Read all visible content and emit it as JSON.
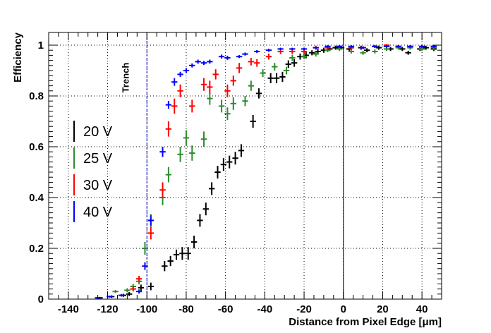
{
  "chart_data": {
    "type": "scatter",
    "xlabel": "Distance from Pixel Edge [μm]",
    "ylabel": "Efficiency",
    "xlim": [
      -150,
      50
    ],
    "ylim": [
      0,
      1.05
    ],
    "x_ticks": [
      -140,
      -120,
      -100,
      -80,
      -60,
      -40,
      -20,
      0,
      20,
      40
    ],
    "y_ticks": [
      0,
      0.2,
      0.4,
      0.6,
      0.8,
      1
    ],
    "grid": true,
    "legend_placement": "left",
    "annotations": [
      {
        "text": "Trench",
        "x": -100,
        "line": "vertical-dashed"
      }
    ],
    "x_bin_half_width": 1.5,
    "series": [
      {
        "name": "20 V",
        "color": "#000000",
        "points": [
          {
            "x": -124,
            "y": 0.005,
            "err": 0.004
          },
          {
            "x": -118,
            "y": 0.01,
            "err": 0.005
          },
          {
            "x": -112,
            "y": 0.015,
            "err": 0.006
          },
          {
            "x": -109,
            "y": 0.02,
            "err": 0.008
          },
          {
            "x": -103,
            "y": 0.045,
            "err": 0.012
          },
          {
            "x": -98,
            "y": 0.05,
            "err": 0.015
          },
          {
            "x": -91,
            "y": 0.13,
            "err": 0.02
          },
          {
            "x": -88,
            "y": 0.15,
            "err": 0.02
          },
          {
            "x": -85,
            "y": 0.175,
            "err": 0.02
          },
          {
            "x": -82,
            "y": 0.18,
            "err": 0.025
          },
          {
            "x": -79,
            "y": 0.18,
            "err": 0.025
          },
          {
            "x": -76,
            "y": 0.225,
            "err": 0.025
          },
          {
            "x": -73,
            "y": 0.31,
            "err": 0.025
          },
          {
            "x": -70,
            "y": 0.355,
            "err": 0.025
          },
          {
            "x": -67,
            "y": 0.435,
            "err": 0.025
          },
          {
            "x": -64,
            "y": 0.5,
            "err": 0.025
          },
          {
            "x": -61,
            "y": 0.53,
            "err": 0.025
          },
          {
            "x": -58,
            "y": 0.54,
            "err": 0.025
          },
          {
            "x": -55,
            "y": 0.555,
            "err": 0.025
          },
          {
            "x": -52,
            "y": 0.585,
            "err": 0.025
          },
          {
            "x": -46,
            "y": 0.7,
            "err": 0.025
          },
          {
            "x": -43,
            "y": 0.81,
            "err": 0.02
          },
          {
            "x": -37,
            "y": 0.87,
            "err": 0.02
          },
          {
            "x": -34,
            "y": 0.87,
            "err": 0.02
          },
          {
            "x": -31,
            "y": 0.875,
            "err": 0.02
          },
          {
            "x": -28,
            "y": 0.925,
            "err": 0.015
          },
          {
            "x": -25,
            "y": 0.93,
            "err": 0.015
          },
          {
            "x": -22,
            "y": 0.955,
            "err": 0.012
          },
          {
            "x": -19,
            "y": 0.96,
            "err": 0.012
          },
          {
            "x": -16,
            "y": 0.97,
            "err": 0.01
          },
          {
            "x": -13,
            "y": 0.975,
            "err": 0.01
          },
          {
            "x": -10,
            "y": 0.98,
            "err": 0.01
          },
          {
            "x": -7,
            "y": 0.985,
            "err": 0.008
          },
          {
            "x": -4,
            "y": 0.99,
            "err": 0.008
          },
          {
            "x": -1,
            "y": 0.99,
            "err": 0.008
          },
          {
            "x": 3,
            "y": 0.985,
            "err": 0.008
          },
          {
            "x": 9,
            "y": 0.99,
            "err": 0.008
          },
          {
            "x": 12,
            "y": 0.98,
            "err": 0.008
          },
          {
            "x": 18,
            "y": 0.99,
            "err": 0.008
          },
          {
            "x": 24,
            "y": 0.985,
            "err": 0.008
          },
          {
            "x": 30,
            "y": 0.985,
            "err": 0.008
          },
          {
            "x": 33,
            "y": 0.97,
            "err": 0.008
          },
          {
            "x": 39,
            "y": 0.985,
            "err": 0.008
          },
          {
            "x": 42,
            "y": 0.99,
            "err": 0.008
          },
          {
            "x": 46,
            "y": 0.985,
            "err": 0.008
          }
        ]
      },
      {
        "name": "25 V",
        "color": "#2e8b2e",
        "points": [
          {
            "x": -116,
            "y": 0.03,
            "err": 0.006
          },
          {
            "x": -110,
            "y": 0.035,
            "err": 0.008
          },
          {
            "x": -107,
            "y": 0.05,
            "err": 0.01
          },
          {
            "x": -104,
            "y": 0.07,
            "err": 0.012
          },
          {
            "x": -101,
            "y": 0.2,
            "err": 0.025
          },
          {
            "x": -98,
            "y": 0.31,
            "err": 0.025
          },
          {
            "x": -92,
            "y": 0.4,
            "err": 0.03
          },
          {
            "x": -89,
            "y": 0.49,
            "err": 0.03
          },
          {
            "x": -83,
            "y": 0.57,
            "err": 0.03
          },
          {
            "x": -80,
            "y": 0.635,
            "err": 0.03
          },
          {
            "x": -77,
            "y": 0.575,
            "err": 0.03
          },
          {
            "x": -71,
            "y": 0.63,
            "err": 0.03
          },
          {
            "x": -68,
            "y": 0.79,
            "err": 0.025
          },
          {
            "x": -62,
            "y": 0.76,
            "err": 0.025
          },
          {
            "x": -59,
            "y": 0.73,
            "err": 0.025
          },
          {
            "x": -56,
            "y": 0.77,
            "err": 0.025
          },
          {
            "x": -50,
            "y": 0.78,
            "err": 0.02
          },
          {
            "x": -47,
            "y": 0.84,
            "err": 0.02
          },
          {
            "x": -41,
            "y": 0.89,
            "err": 0.015
          },
          {
            "x": -35,
            "y": 0.915,
            "err": 0.015
          },
          {
            "x": -29,
            "y": 0.9,
            "err": 0.015
          },
          {
            "x": -26,
            "y": 0.95,
            "err": 0.012
          },
          {
            "x": -20,
            "y": 0.955,
            "err": 0.01
          },
          {
            "x": -14,
            "y": 0.965,
            "err": 0.01
          },
          {
            "x": -8,
            "y": 0.98,
            "err": 0.008
          },
          {
            "x": -2,
            "y": 0.985,
            "err": 0.008
          },
          {
            "x": 4,
            "y": 0.975,
            "err": 0.008
          },
          {
            "x": 10,
            "y": 0.97,
            "err": 0.008
          },
          {
            "x": 16,
            "y": 0.975,
            "err": 0.008
          },
          {
            "x": 22,
            "y": 0.985,
            "err": 0.008
          },
          {
            "x": 28,
            "y": 0.99,
            "err": 0.008
          },
          {
            "x": 34,
            "y": 0.99,
            "err": 0.008
          },
          {
            "x": 40,
            "y": 0.985,
            "err": 0.008
          },
          {
            "x": 46,
            "y": 0.99,
            "err": 0.008
          }
        ]
      },
      {
        "name": "30 V",
        "color": "#ff0000",
        "points": [
          {
            "x": -107,
            "y": 0.04,
            "err": 0.01
          },
          {
            "x": -104,
            "y": 0.08,
            "err": 0.012
          },
          {
            "x": -98,
            "y": 0.26,
            "err": 0.025
          },
          {
            "x": -92,
            "y": 0.43,
            "err": 0.03
          },
          {
            "x": -89,
            "y": 0.67,
            "err": 0.03
          },
          {
            "x": -86,
            "y": 0.76,
            "err": 0.03
          },
          {
            "x": -83,
            "y": 0.82,
            "err": 0.025
          },
          {
            "x": -77,
            "y": 0.76,
            "err": 0.025
          },
          {
            "x": -71,
            "y": 0.845,
            "err": 0.025
          },
          {
            "x": -68,
            "y": 0.835,
            "err": 0.025
          },
          {
            "x": -65,
            "y": 0.885,
            "err": 0.02
          },
          {
            "x": -59,
            "y": 0.82,
            "err": 0.025
          },
          {
            "x": -56,
            "y": 0.86,
            "err": 0.02
          },
          {
            "x": -53,
            "y": 0.91,
            "err": 0.02
          },
          {
            "x": -47,
            "y": 0.935,
            "err": 0.015
          },
          {
            "x": -44,
            "y": 0.93,
            "err": 0.015
          },
          {
            "x": -38,
            "y": 0.955,
            "err": 0.012
          },
          {
            "x": -32,
            "y": 0.975,
            "err": 0.01
          },
          {
            "x": -26,
            "y": 0.975,
            "err": 0.01
          },
          {
            "x": -20,
            "y": 0.975,
            "err": 0.01
          },
          {
            "x": -14,
            "y": 0.99,
            "err": 0.008
          },
          {
            "x": -8,
            "y": 0.99,
            "err": 0.008
          },
          {
            "x": -2,
            "y": 0.995,
            "err": 0.006
          },
          {
            "x": 4,
            "y": 0.99,
            "err": 0.006
          },
          {
            "x": 10,
            "y": 0.99,
            "err": 0.006
          },
          {
            "x": 16,
            "y": 0.995,
            "err": 0.006
          },
          {
            "x": 22,
            "y": 1.0,
            "err": 0.004
          },
          {
            "x": 28,
            "y": 0.995,
            "err": 0.006
          },
          {
            "x": 34,
            "y": 0.995,
            "err": 0.006
          },
          {
            "x": 40,
            "y": 0.995,
            "err": 0.006
          },
          {
            "x": 46,
            "y": 0.995,
            "err": 0.006
          }
        ]
      },
      {
        "name": "40 V",
        "color": "#0000ff",
        "points": [
          {
            "x": -125,
            "y": 0.005,
            "err": 0.003
          },
          {
            "x": -119,
            "y": 0.01,
            "err": 0.004
          },
          {
            "x": -113,
            "y": 0.015,
            "err": 0.005
          },
          {
            "x": -104,
            "y": 0.03,
            "err": 0.008
          },
          {
            "x": -101,
            "y": 0.13,
            "err": 0.015
          },
          {
            "x": -98,
            "y": 0.31,
            "err": 0.02
          },
          {
            "x": -92,
            "y": 0.58,
            "err": 0.02
          },
          {
            "x": -89,
            "y": 0.765,
            "err": 0.015
          },
          {
            "x": -86,
            "y": 0.855,
            "err": 0.015
          },
          {
            "x": -83,
            "y": 0.885,
            "err": 0.01
          },
          {
            "x": -80,
            "y": 0.9,
            "err": 0.01
          },
          {
            "x": -77,
            "y": 0.92,
            "err": 0.008
          },
          {
            "x": -74,
            "y": 0.935,
            "err": 0.008
          },
          {
            "x": -71,
            "y": 0.93,
            "err": 0.008
          },
          {
            "x": -68,
            "y": 0.935,
            "err": 0.008
          },
          {
            "x": -62,
            "y": 0.955,
            "err": 0.008
          },
          {
            "x": -59,
            "y": 0.95,
            "err": 0.008
          },
          {
            "x": -53,
            "y": 0.955,
            "err": 0.006
          },
          {
            "x": -50,
            "y": 0.965,
            "err": 0.006
          },
          {
            "x": -44,
            "y": 0.975,
            "err": 0.006
          },
          {
            "x": -38,
            "y": 0.98,
            "err": 0.006
          },
          {
            "x": -32,
            "y": 0.985,
            "err": 0.005
          },
          {
            "x": -26,
            "y": 0.985,
            "err": 0.005
          },
          {
            "x": -20,
            "y": 0.985,
            "err": 0.005
          },
          {
            "x": -14,
            "y": 0.99,
            "err": 0.005
          },
          {
            "x": -8,
            "y": 0.995,
            "err": 0.005
          },
          {
            "x": -2,
            "y": 0.995,
            "err": 0.005
          },
          {
            "x": 4,
            "y": 0.995,
            "err": 0.005
          },
          {
            "x": 10,
            "y": 0.99,
            "err": 0.005
          },
          {
            "x": 16,
            "y": 0.995,
            "err": 0.005
          },
          {
            "x": 22,
            "y": 0.995,
            "err": 0.005
          },
          {
            "x": 28,
            "y": 0.995,
            "err": 0.005
          },
          {
            "x": 34,
            "y": 0.995,
            "err": 0.005
          },
          {
            "x": 40,
            "y": 0.995,
            "err": 0.005
          },
          {
            "x": 46,
            "y": 0.995,
            "err": 0.005
          }
        ]
      }
    ]
  }
}
